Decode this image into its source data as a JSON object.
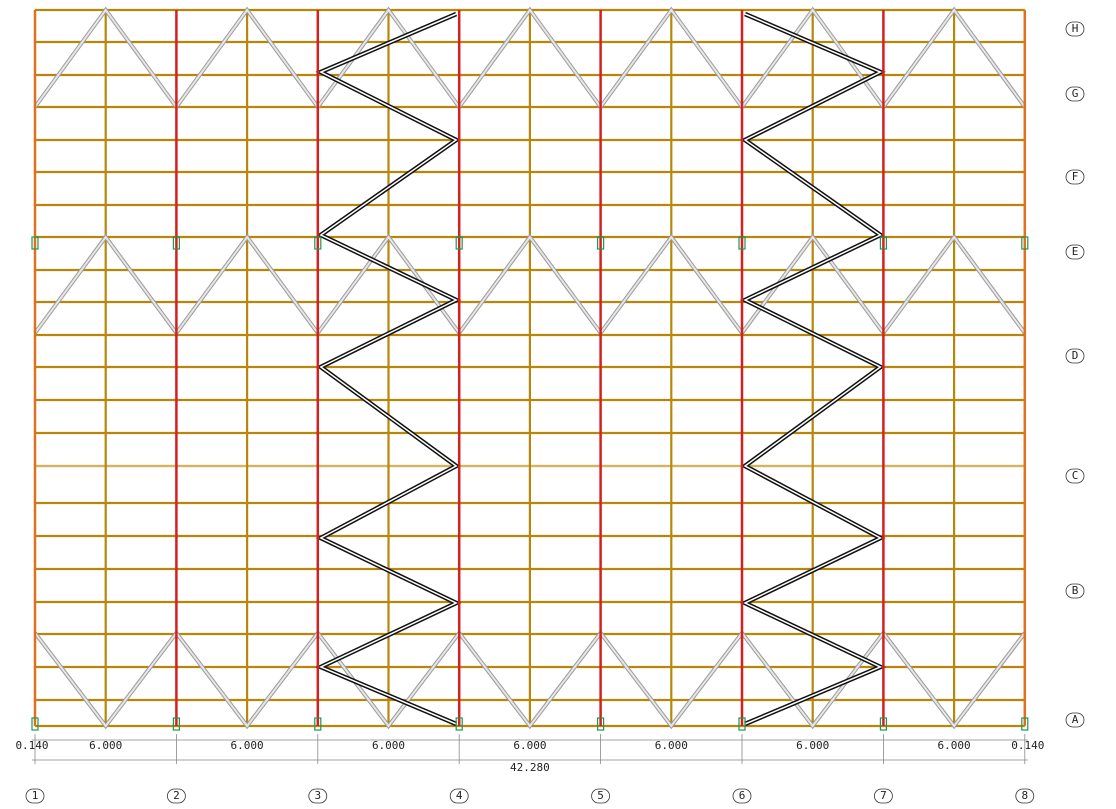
{
  "grid_rows": [
    "A",
    "B",
    "C",
    "D",
    "E",
    "F",
    "G",
    "H"
  ],
  "grid_columns": [
    "1",
    "2",
    "3",
    "4",
    "5",
    "6",
    "7",
    "8"
  ],
  "dimensions": {
    "segments": [
      "0.140",
      "6.000",
      "6.000",
      "6.000",
      "6.000",
      "6.000",
      "6.000",
      "6.000",
      "0.140"
    ],
    "total": "42.280"
  }
}
